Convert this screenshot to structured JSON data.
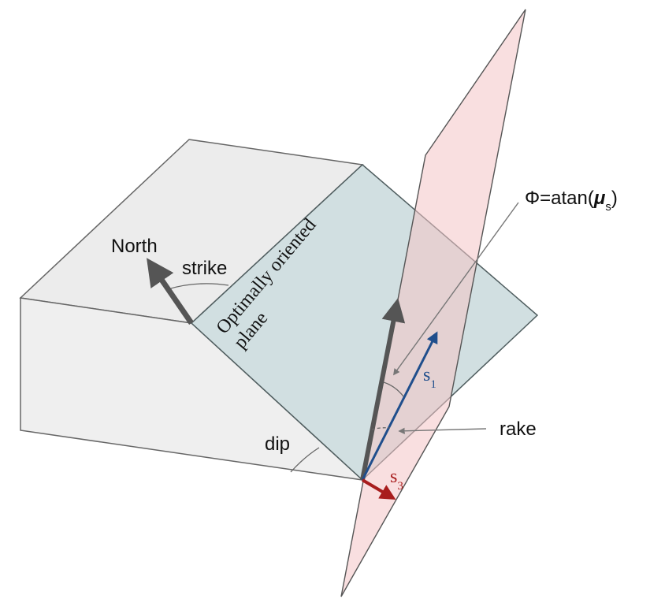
{
  "colors": {
    "block_face": "#ececec",
    "block_edge": "#666666",
    "fault_plane": "#cfdee0",
    "fault_edge": "#4f5d5f",
    "aux_plane": "#f4c4c7",
    "aux_edge": "#555555",
    "arrow_gray": "#555555",
    "s1": "#1f4e8c",
    "s3": "#a81d1d",
    "leader": "#777777"
  },
  "labels": {
    "north": "North",
    "strike": "strike",
    "plane_line1": "Optimally oriented",
    "plane_line2": "plane",
    "dip": "dip",
    "rake": "rake",
    "phi_prefix": "Φ=atan(",
    "phi_mu": "μ",
    "phi_sub": "s",
    "phi_suffix": ")",
    "s1_main": "s",
    "s1_sub": "1",
    "s3_main": "s",
    "s3_sub": "3"
  }
}
